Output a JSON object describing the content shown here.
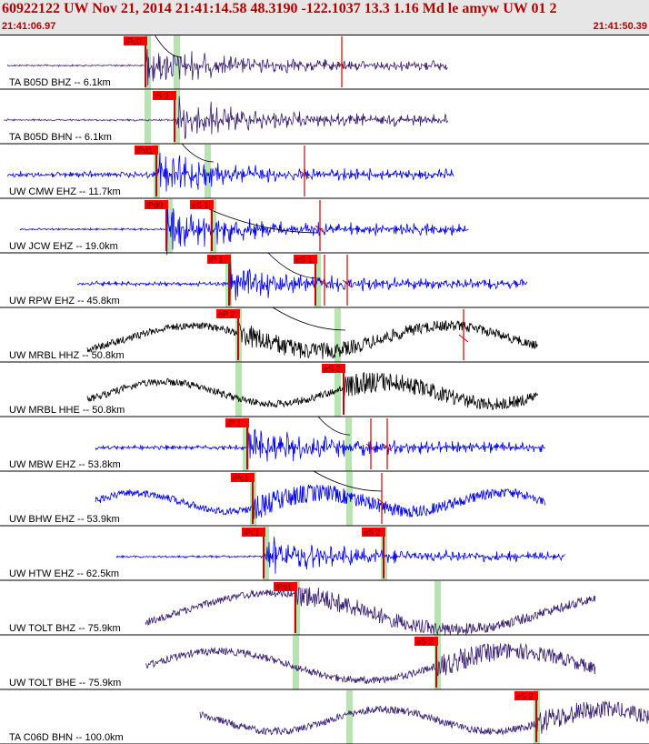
{
  "header": {
    "title": "60922122 UW Nov 21, 2014 21:41:14.58    48.3190 -122.1037 13.3 1.16 Md le amyw UW 01    2",
    "start_time": "21:41:06.97",
    "end_time": "21:41:50.39"
  },
  "colors": {
    "header_bg": "#e6e6e6",
    "header_text": "#b00000",
    "pick_bg": "#ff0000",
    "pick_line": "#cc0000",
    "pick_band": "#b7e4b0",
    "trace_purple": "#3a1f6e",
    "trace_blue": "#0000ee",
    "trace_black": "#000000"
  },
  "traces": [
    {
      "label": "TA B05D BHZ -- 6.1km",
      "color": "trace_purple",
      "picks": [
        {
          "text": "iPc0"
        }
      ],
      "marker": true
    },
    {
      "label": "TA B05D BHN -- 6.1km",
      "color": "trace_purple",
      "picks": [
        {
          "text": "iS 0"
        }
      ],
      "marker": false
    },
    {
      "label": "UW CMW EHZ -- 11.7km",
      "color": "trace_blue",
      "picks": [
        {
          "text": "iPd1"
        }
      ],
      "marker": true
    },
    {
      "label": "UW JCW EHZ -- 19.0km",
      "color": "trace_blue",
      "picks": [
        {
          "text": "iPd0"
        },
        {
          "text": "eS 1"
        }
      ],
      "marker": true
    },
    {
      "label": "UW RPW EHZ -- 45.8km",
      "color": "trace_blue",
      "picks": [
        {
          "text": "iP 1"
        },
        {
          "text": "eS 1"
        }
      ],
      "marker": true
    },
    {
      "label": "UW MRBL HHZ -- 50.8km",
      "color": "trace_black",
      "picks": [
        {
          "text": "eP 2"
        }
      ],
      "marker": true
    },
    {
      "label": "UW MRBL HHE -- 50.8km",
      "color": "trace_black",
      "picks": [
        {
          "text": "eS 2"
        }
      ],
      "marker": false
    },
    {
      "label": "UW MBW EHZ -- 53.8km",
      "color": "trace_blue",
      "picks": [
        {
          "text": "iP 1"
        }
      ],
      "marker": true
    },
    {
      "label": "UW BHW EHZ -- 53.9km",
      "color": "trace_blue",
      "picks": [
        {
          "text": "iPc1"
        }
      ],
      "marker": true
    },
    {
      "label": "UW HTW EHZ -- 62.5km",
      "color": "trace_blue",
      "picks": [
        {
          "text": "iPc1"
        },
        {
          "text": "eS 2"
        }
      ],
      "marker": false
    },
    {
      "label": "UW TOLT BHZ -- 75.9km",
      "color": "trace_purple",
      "picks": [
        {
          "text": "iPd1"
        }
      ],
      "marker": false
    },
    {
      "label": "UW TOLT BHE -- 75.9km",
      "color": "trace_purple",
      "picks": [
        {
          "text": "eS 2"
        }
      ],
      "marker": false
    },
    {
      "label": "TA C06D BHN -- 100.0km",
      "color": "trace_purple",
      "picks": [
        {
          "text": "eS 2"
        }
      ],
      "marker": false
    }
  ]
}
